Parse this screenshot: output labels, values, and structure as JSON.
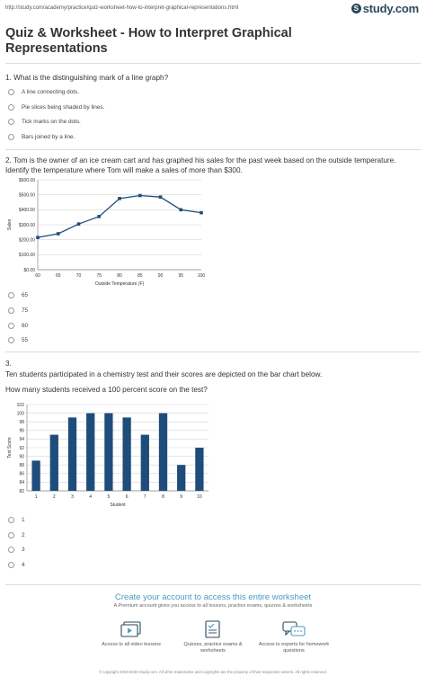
{
  "header": {
    "url": "http://study.com/academy/practice/quiz-worksheet-how-to-interpret-graphical-representations.html",
    "logo_text": "study.com",
    "logo_glyph": "S"
  },
  "title": "Quiz & Worksheet - How to Interpret Graphical Representations",
  "questions": [
    {
      "text": "1. What is the distinguishing mark of a line graph?",
      "options": [
        "A line connecting dots.",
        "Pie slices being shaded by lines.",
        "Tick marks on the dots.",
        "Bars joined by a line."
      ]
    },
    {
      "text": "2. Tom is the owner of an ice cream cart and has graphed his sales for the past week based on the outside temperature. Identify the temperature where Tom will make a sales of more than $300.",
      "options": [
        "65",
        "75",
        "60",
        "55"
      ]
    },
    {
      "number": "3.",
      "intro": "Ten students participated in a chemistry test and their scores are depicted on the bar chart below.",
      "text": "How many students received a 100 percent score on the test?",
      "options": [
        "1",
        "2",
        "3",
        "4"
      ]
    }
  ],
  "chart_data": [
    {
      "type": "line",
      "title": "",
      "xlabel": "Outside Temperature (F)",
      "ylabel": "Sales",
      "x": [
        60,
        65,
        70,
        75,
        80,
        85,
        90,
        95,
        100
      ],
      "values": [
        215,
        240,
        305,
        355,
        475,
        495,
        485,
        400,
        380
      ],
      "xlim": [
        60,
        100
      ],
      "ylim": [
        0,
        600
      ],
      "xticks": [
        "60",
        "65",
        "70",
        "75",
        "80",
        "85",
        "90",
        "95",
        "100"
      ],
      "yticks": [
        "$0.00",
        "$100.00",
        "$200.00",
        "$300.00",
        "$400.00",
        "$500.00",
        "$600.00"
      ],
      "grid": true,
      "color": "#1e4d7b"
    },
    {
      "type": "bar",
      "title": "",
      "xlabel": "Student",
      "ylabel": "Test Score",
      "categories": [
        "1",
        "2",
        "3",
        "4",
        "5",
        "6",
        "7",
        "8",
        "9",
        "10"
      ],
      "values": [
        89,
        95,
        99,
        100,
        100,
        99,
        95,
        100,
        88,
        92
      ],
      "ylim": [
        82,
        102
      ],
      "yticks": [
        "82",
        "84",
        "86",
        "88",
        "90",
        "92",
        "94",
        "96",
        "98",
        "100",
        "102"
      ],
      "grid": true,
      "color": "#1e4d7b"
    }
  ],
  "promo": {
    "title": "Create your account to access this entire worksheet",
    "subtitle": "A Premium account gives you access to all lessons, practice exams, quizzes & worksheets",
    "features": [
      {
        "icon": "video-lessons-icon",
        "text": "Access to all video lessons"
      },
      {
        "icon": "quizzes-worksheets-icon",
        "text": "Quizzes, practice exams & worksheets"
      },
      {
        "icon": "experts-chat-icon",
        "text": "Access to experts for homework questions"
      }
    ]
  },
  "footer": "© copyright 2003-2020 Study.com. All other trademarks and copyrights are the property of their respective owners. All rights reserved."
}
